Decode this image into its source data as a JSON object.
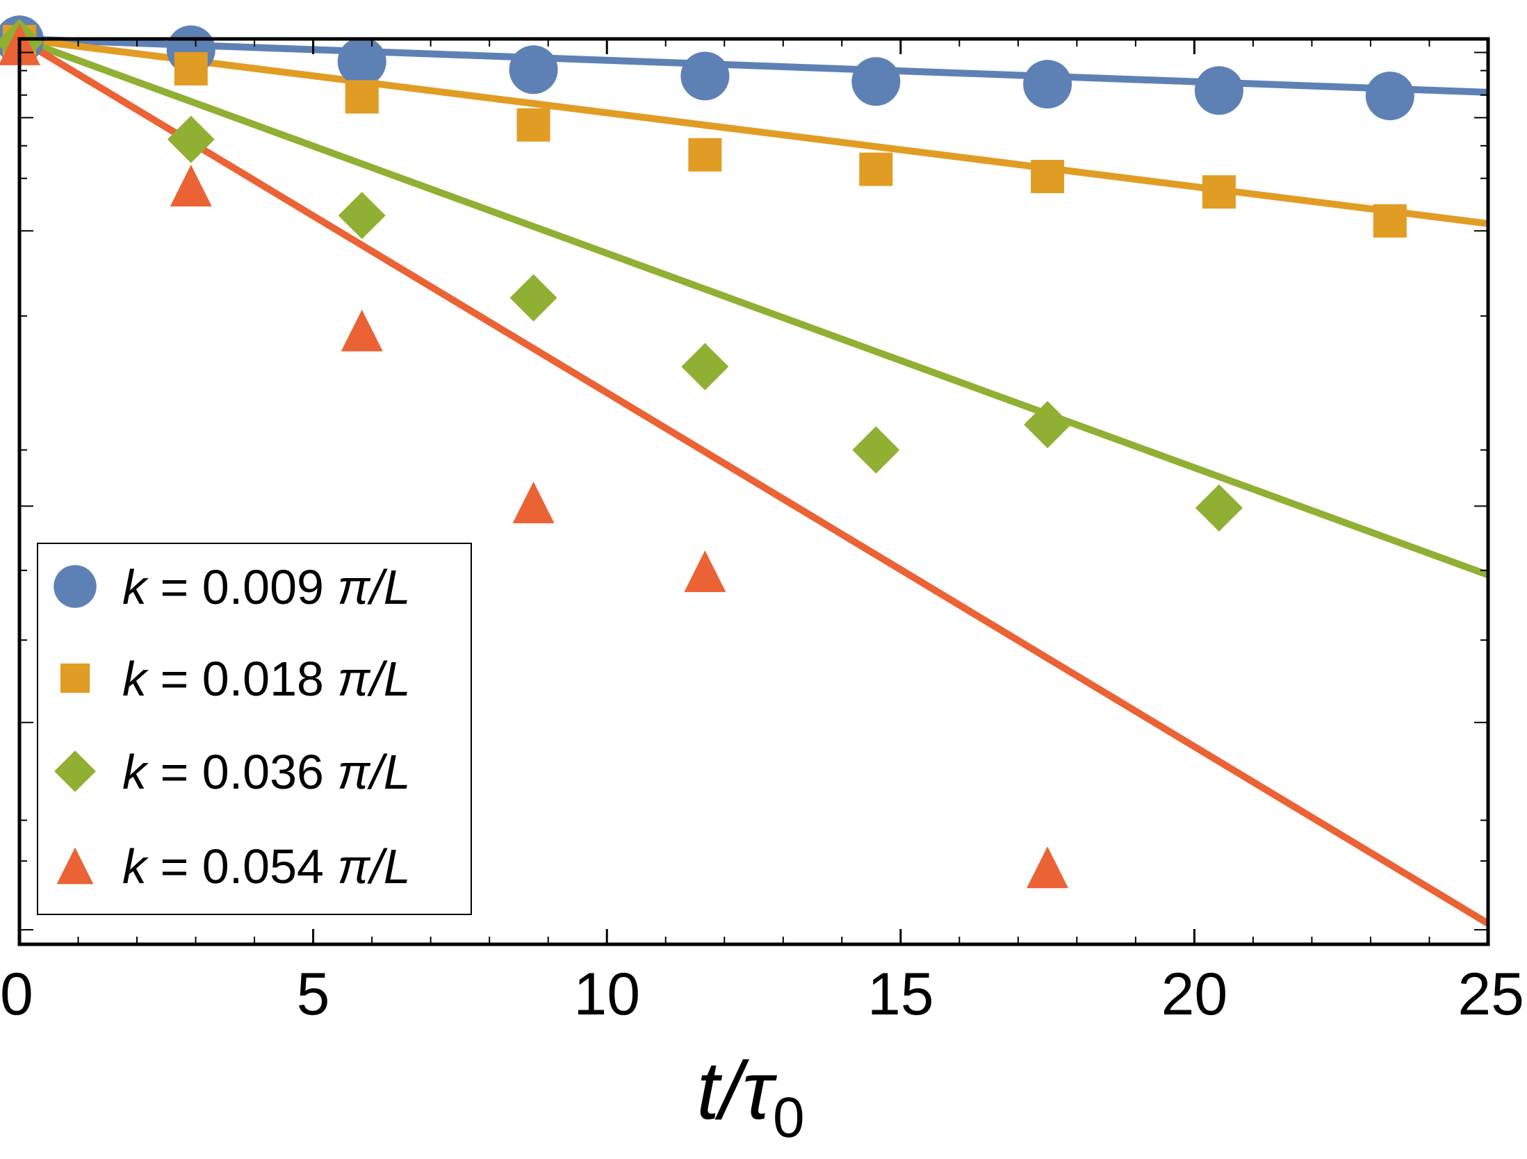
{
  "chart_data": {
    "type": "scatter",
    "title": "",
    "xlabel": "t/τ0",
    "xlabel_main": "t/τ",
    "xlabel_sub": "0",
    "ylabel": "",
    "xlim": [
      0,
      25
    ],
    "ylim": [
      0,
      1
    ],
    "x_ticks": [
      0,
      5,
      10,
      15,
      20,
      25
    ],
    "x_tick_labels": [
      "0",
      "5",
      "10",
      "15",
      "20",
      "25"
    ],
    "legend_position": "bottom-left",
    "series": [
      {
        "name": "k = 0.009 π/L",
        "color": "#5E81B5",
        "marker": "circle",
        "x": [
          0,
          2.92,
          5.83,
          8.75,
          11.67,
          14.58,
          17.5,
          20.42,
          23.33
        ],
        "y": [
          0.999,
          0.988,
          0.975,
          0.966,
          0.959,
          0.953,
          0.95,
          0.943,
          0.937
        ],
        "fit": {
          "x": [
            0,
            25
          ],
          "y": [
            1.0,
            0.941
          ]
        }
      },
      {
        "name": "k = 0.018 π/L",
        "color": "#E19C24",
        "marker": "square",
        "x": [
          0,
          2.92,
          5.83,
          8.75,
          11.67,
          14.58,
          17.5,
          20.42,
          23.33
        ],
        "y": [
          0.997,
          0.967,
          0.936,
          0.905,
          0.872,
          0.856,
          0.848,
          0.831,
          0.799
        ],
        "fit": {
          "x": [
            0,
            25
          ],
          "y": [
            1.0,
            0.796
          ]
        }
      },
      {
        "name": "k = 0.036 π/L",
        "color": "#8FB032",
        "marker": "diamond",
        "x": [
          0,
          2.92,
          5.83,
          8.75,
          11.67,
          14.58,
          17.5,
          20.42
        ],
        "y": [
          0.996,
          0.889,
          0.805,
          0.714,
          0.638,
          0.546,
          0.574,
          0.482
        ],
        "fit": {
          "x": [
            0,
            25
          ],
          "y": [
            1.0,
            0.408
          ]
        }
      },
      {
        "name": "k = 0.054 π/L",
        "color": "#EB6235",
        "marker": "triangle",
        "x": [
          0,
          2.92,
          5.83,
          8.75,
          11.67,
          17.5
        ],
        "y": [
          0.994,
          0.838,
          0.678,
          0.488,
          0.412,
          0.085
        ],
        "fit": {
          "x": [
            0,
            25
          ],
          "y": [
            1.0,
            0.023
          ]
        }
      }
    ]
  }
}
